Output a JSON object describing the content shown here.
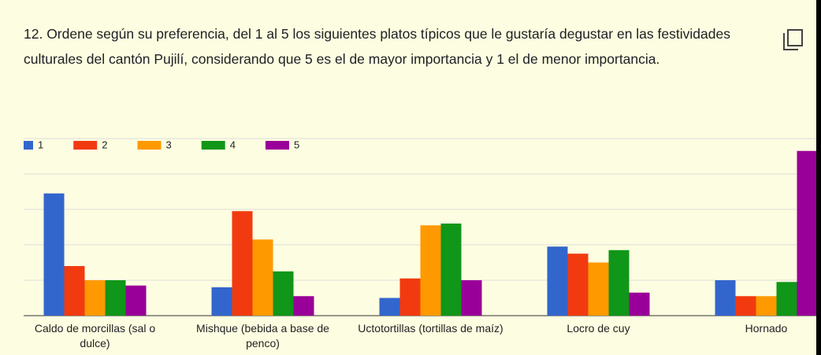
{
  "question": "12. Ordene según su preferencia, del 1 al 5 los siguientes platos típicos que le gustaría degustar en las festividades culturales del cantón Pujilí, considerando que 5 es el de mayor importancia y 1 el de menor importancia.",
  "chart_data": {
    "type": "bar",
    "categories": [
      "Caldo de morcillas (sal o dulce)",
      "Mishque (bebida a base de penco)",
      "Uctotortillas (tortillas de maíz)",
      "Locro de cuy",
      "Hornado"
    ],
    "series": [
      {
        "name": "1",
        "color": "#3366cc",
        "values": [
          69,
          16,
          10,
          39,
          20
        ]
      },
      {
        "name": "2",
        "color": "#f23a10",
        "values": [
          28,
          59,
          21,
          35,
          11
        ]
      },
      {
        "name": "3",
        "color": "#ff9900",
        "values": [
          20,
          43,
          51,
          30,
          11
        ]
      },
      {
        "name": "4",
        "color": "#109618",
        "values": [
          20,
          25,
          52,
          37,
          19
        ]
      },
      {
        "name": "5",
        "color": "#990099",
        "values": [
          17,
          11,
          20,
          13,
          93
        ]
      }
    ],
    "ylim": [
      0,
      100
    ],
    "yticks": [
      0,
      20,
      40,
      60,
      80,
      100
    ],
    "grid": true,
    "legend": "top"
  }
}
